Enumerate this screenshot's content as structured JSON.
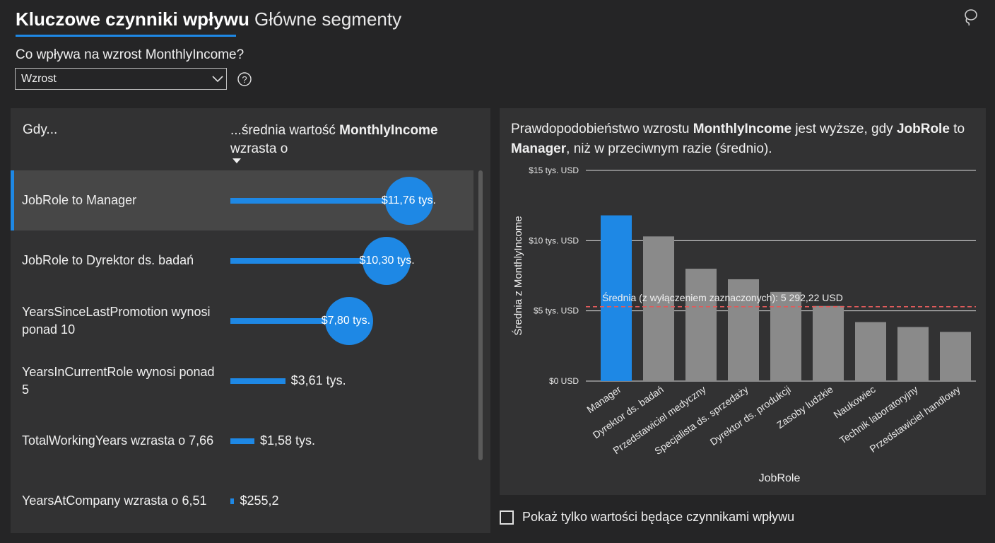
{
  "tabs": [
    {
      "label": "Kluczowe czynniki wpływu",
      "active": true
    },
    {
      "label": "Główne segmenty",
      "active": false
    }
  ],
  "question": "Co wpływa na wzrost MonthlyIncome?",
  "dropdown": {
    "selected": "Wzrost"
  },
  "icons": {
    "help": "help-circle-icon",
    "lasso": "lasso-icon",
    "dropdown": "chevron-down-icon"
  },
  "colors": {
    "accent": "#1e88e5",
    "bar_gray": "#8a8a8a",
    "average_line": "#e05b5b"
  },
  "influencers": {
    "header_when": "Gdy...",
    "header_avg_pre": "...średnia wartość ",
    "header_avg_bold": "MonthlyIncome",
    "header_avg_post": " wzrasta o",
    "rows": [
      {
        "label": "JobRole to Manager",
        "value": 11760,
        "display": "$11,76 tys.",
        "selected": true
      },
      {
        "label": "JobRole to Dyrektor ds. badań",
        "value": 10300,
        "display": "$10,30 tys.",
        "selected": false
      },
      {
        "label": "YearsSinceLastPromotion wynosi ponad 10",
        "value": 7800,
        "display": "$7,80 tys.",
        "selected": false
      },
      {
        "label": "YearsInCurrentRole wynosi ponad 5",
        "value": 3610,
        "display": "$3,61 tys.",
        "selected": false
      },
      {
        "label": "TotalWorkingYears wzrasta o 7,66",
        "value": 1580,
        "display": "$1,58 tys.",
        "selected": false
      },
      {
        "label": "YearsAtCompany wzrasta o 6,51",
        "value": 255.2,
        "display": "$255,2",
        "selected": false
      }
    ]
  },
  "detail": {
    "title_parts": [
      {
        "text": "Prawdopodobieństwo wzrostu ",
        "bold": false
      },
      {
        "text": "MonthlyIncome",
        "bold": true
      },
      {
        "text": " jest wyższe, gdy ",
        "bold": false
      },
      {
        "text": "JobRole",
        "bold": true
      },
      {
        "text": " to ",
        "bold": false
      },
      {
        "text": "Manager",
        "bold": true
      },
      {
        "text": ", niż w przeciwnym razie (średnio).",
        "bold": false
      }
    ]
  },
  "chart_data": {
    "type": "bar",
    "xlabel": "JobRole",
    "ylabel": "Średnia z MonthlyIncome",
    "ylim": [
      0,
      15000
    ],
    "y_ticks": [
      {
        "value": 0,
        "label": "$0 USD"
      },
      {
        "value": 5000,
        "label": "$5 tys. USD"
      },
      {
        "value": 10000,
        "label": "$10 tys. USD"
      },
      {
        "value": 15000,
        "label": "$15 tys. USD"
      }
    ],
    "categories": [
      "Manager",
      "Dyrektor ds. badań",
      "Przedstawiciel medyczny",
      "Specjalista ds. sprzedaży",
      "Dyrektor ds. produkcji",
      "Zasoby ludzkie",
      "Naukowiec",
      "Technik laboratoryjny",
      "Przedstawiciel handlowy"
    ],
    "values": [
      11800,
      10300,
      8000,
      7250,
      6350,
      5350,
      4200,
      3850,
      3500
    ],
    "highlighted": "Manager",
    "average": {
      "value": 5292.22,
      "label": "Średnia (z wyłączeniem zaznaczonych): 5 292,22 USD"
    },
    "grid": true
  },
  "checkbox": {
    "label": "Pokaż tylko wartości będące czynnikami wpływu",
    "checked": false
  }
}
